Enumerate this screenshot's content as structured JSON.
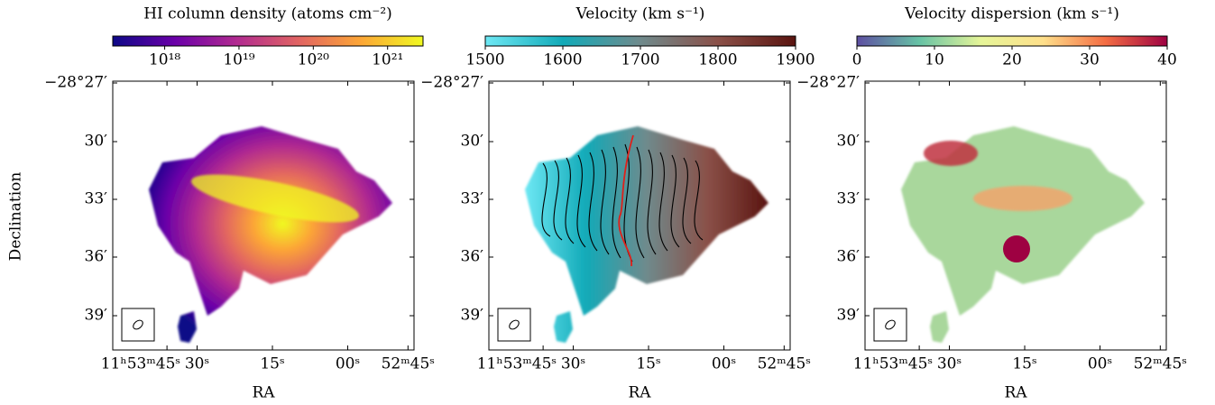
{
  "chart_data": [
    {
      "type": "map",
      "colorbar_label": "HI column density (atoms cm⁻²)",
      "clim": [
        2e+17,
        3e+21
      ],
      "log_scale": true,
      "cticks": [
        {
          "value": 1e+18,
          "label": "10¹⁸"
        },
        {
          "value": 1e+19,
          "label": "10¹⁹"
        },
        {
          "value": 1e+20,
          "label": "10²⁰"
        },
        {
          "value": 1e+21,
          "label": "10²¹"
        }
      ],
      "colormap": [
        "#0d0887",
        "#6a00a8",
        "#b12a90",
        "#e16462",
        "#fca636",
        "#f0f921"
      ],
      "xlabel": "RA",
      "ylabel": "Declination",
      "xtick_labels": [
        "11ʰ53ᵐ45ˢ",
        "30ˢ",
        "15ˢ",
        "00ˢ",
        "52ᵐ45ˢ"
      ],
      "ytick_labels": [
        "−28°27′",
        "30′",
        "33′",
        "36′",
        "39′"
      ]
    },
    {
      "type": "map",
      "colorbar_label": "Velocity (km s⁻¹)",
      "clim": [
        1500,
        1900
      ],
      "log_scale": false,
      "cticks": [
        1500,
        1600,
        1700,
        1800,
        1900
      ],
      "colormap": [
        "#6ee8f4",
        "#12aab8",
        "#6f8a8c",
        "#8a5048",
        "#5a1410"
      ],
      "xlabel": "RA",
      "xtick_labels": [
        "11ʰ53ᵐ45ˢ",
        "30ˢ",
        "15ˢ",
        "00ˢ",
        "52ᵐ45ˢ"
      ],
      "ytick_labels": [
        "−28°27′",
        "30′",
        "33′",
        "36′",
        "39′"
      ]
    },
    {
      "type": "map",
      "colorbar_label": "Velocity dispersion (km s⁻¹)",
      "clim": [
        0,
        40
      ],
      "log_scale": false,
      "cticks": [
        0,
        10,
        20,
        30,
        40
      ],
      "colormap": [
        "#5e4fa2",
        "#66c2a5",
        "#e6f598",
        "#fee08b",
        "#f46d43",
        "#9e0142"
      ],
      "xlabel": "RA",
      "xtick_labels": [
        "11ʰ53ᵐ45ˢ",
        "30ˢ",
        "15ˢ",
        "00ˢ",
        "52ᵐ45ˢ"
      ],
      "ytick_labels": [
        "−28°27′",
        "30′",
        "33′",
        "36′",
        "39′"
      ]
    }
  ]
}
